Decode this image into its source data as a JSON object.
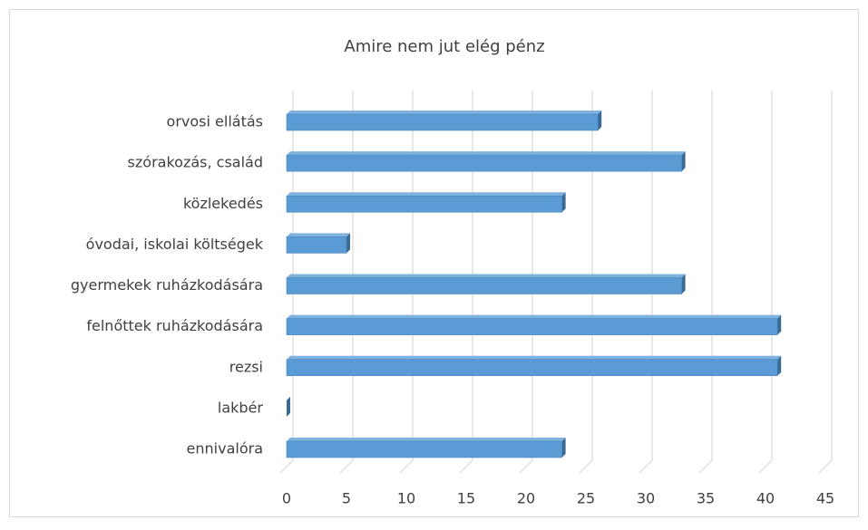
{
  "chart_data": {
    "type": "bar",
    "orientation": "horizontal",
    "title": "Amire nem jut elég pénz",
    "categories": [
      "ennivalóra",
      "lakbér",
      "rezsi",
      "felnőttek ruházkodására",
      "gyermekek ruházkodására",
      "óvodai, iskolai költségek",
      "közlekedés",
      "szórakozás, család",
      "orvosi ellátás"
    ],
    "values": [
      23,
      0,
      41,
      41,
      33,
      5,
      23,
      33,
      26
    ],
    "color": "#5b9bd5",
    "xlim": [
      0,
      45
    ],
    "xticks": [
      0,
      5,
      10,
      15,
      20,
      25,
      30,
      35,
      40,
      45
    ],
    "grid": true
  }
}
